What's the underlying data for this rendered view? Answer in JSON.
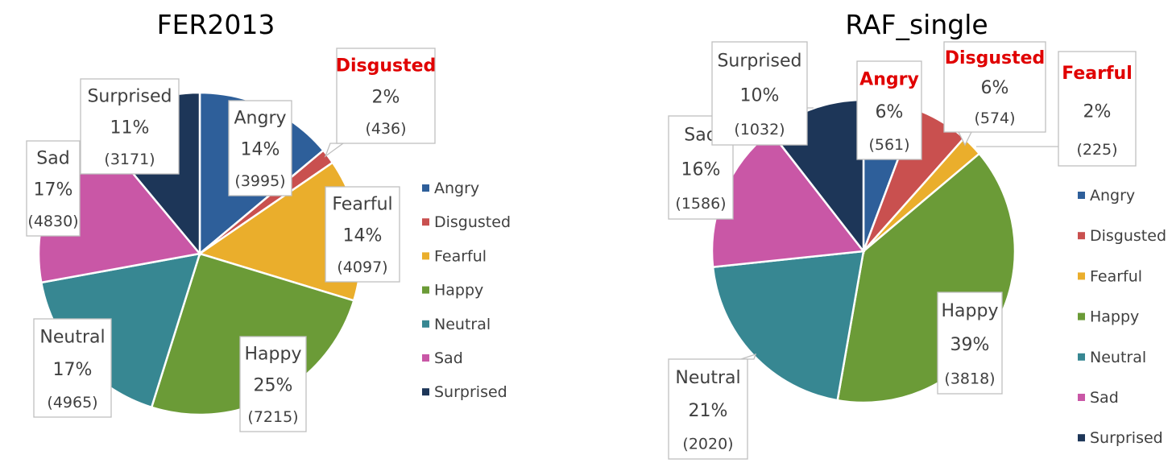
{
  "chart_data": [
    {
      "type": "pie",
      "title": "FER2013",
      "legend_position": "right",
      "highlight_color": "#e00000",
      "slices": [
        {
          "label": "Angry",
          "value": 3995,
          "percent_label": "14%",
          "count_label": "(3995)",
          "color": "#2e5f9a",
          "highlight": false
        },
        {
          "label": "Disgusted",
          "value": 436,
          "percent_label": "2%",
          "count_label": "(436)",
          "color": "#c9504f",
          "highlight": true
        },
        {
          "label": "Fearful",
          "value": 4097,
          "percent_label": "14%",
          "count_label": "(4097)",
          "color": "#eaae2c",
          "highlight": false
        },
        {
          "label": "Happy",
          "value": 7215,
          "percent_label": "25%",
          "count_label": "(7215)",
          "color": "#6b9b37",
          "highlight": false
        },
        {
          "label": "Neutral",
          "value": 4965,
          "percent_label": "17%",
          "count_label": "(4965)",
          "color": "#378792",
          "highlight": false
        },
        {
          "label": "Sad",
          "value": 4830,
          "percent_label": "17%",
          "count_label": "(4830)",
          "color": "#c957a6",
          "highlight": false
        },
        {
          "label": "Surprised",
          "value": 3171,
          "percent_label": "11%",
          "count_label": "(3171)",
          "color": "#1d3658",
          "highlight": false
        }
      ]
    },
    {
      "type": "pie",
      "title": "RAF_single",
      "legend_position": "right",
      "highlight_color": "#e00000",
      "slices": [
        {
          "label": "Angry",
          "value": 561,
          "percent_label": "6%",
          "count_label": "(561)",
          "color": "#2e5f9a",
          "highlight": true
        },
        {
          "label": "Disgusted",
          "value": 574,
          "percent_label": "6%",
          "count_label": "(574)",
          "color": "#c9504f",
          "highlight": true
        },
        {
          "label": "Fearful",
          "value": 225,
          "percent_label": "2%",
          "count_label": "(225)",
          "color": "#eaae2c",
          "highlight": true
        },
        {
          "label": "Happy",
          "value": 3818,
          "percent_label": "39%",
          "count_label": "(3818)",
          "color": "#6b9b37",
          "highlight": false
        },
        {
          "label": "Neutral",
          "value": 2020,
          "percent_label": "21%",
          "count_label": "(2020)",
          "color": "#378792",
          "highlight": false
        },
        {
          "label": "Sad",
          "value": 1586,
          "percent_label": "16%",
          "count_label": "(1586)",
          "color": "#c957a6",
          "highlight": false
        },
        {
          "label": "Surprised",
          "value": 1032,
          "percent_label": "10%",
          "count_label": "(1032)",
          "color": "#1d3658",
          "highlight": false
        }
      ]
    }
  ]
}
